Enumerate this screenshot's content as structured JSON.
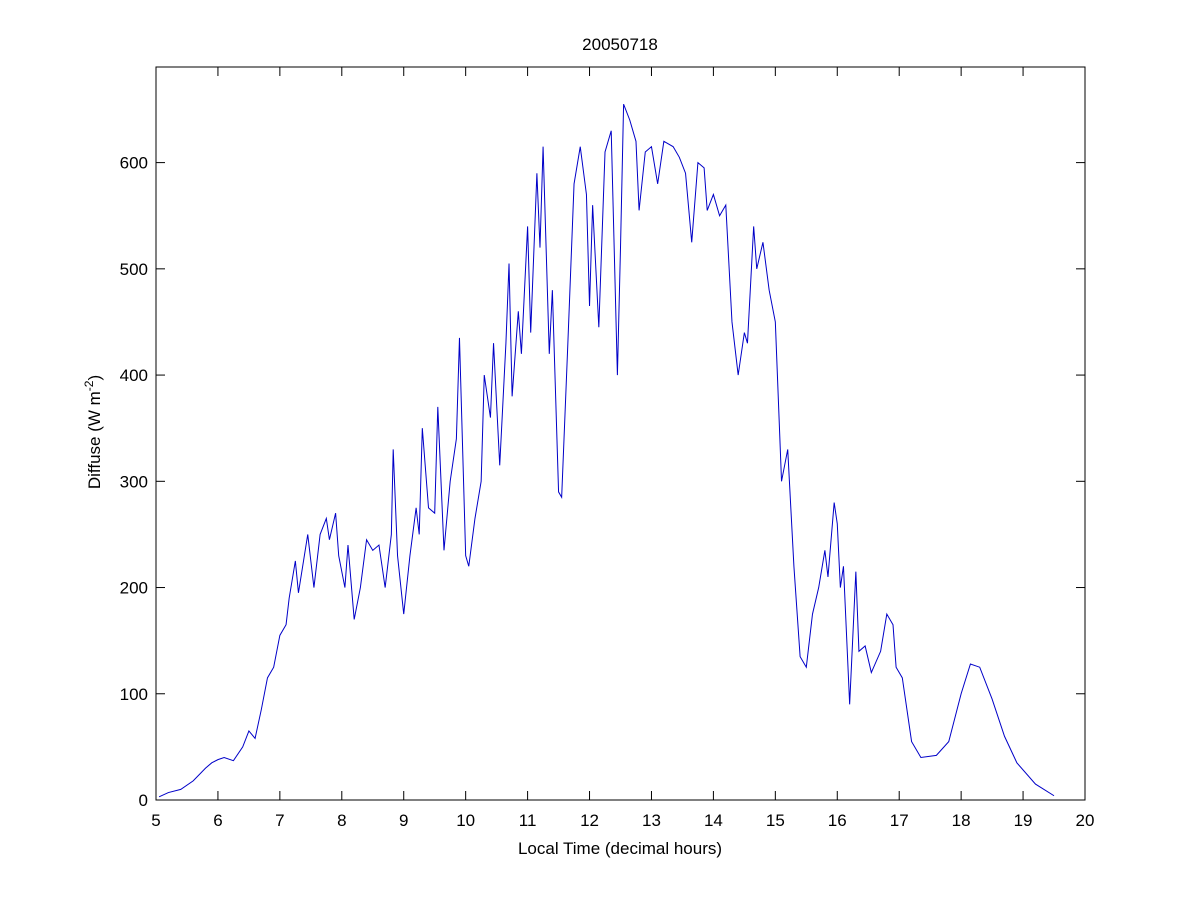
{
  "chart_data": {
    "type": "line",
    "title": "20050718",
    "x_label": "Local Time (decimal hours)",
    "y_label": "Diffuse (W m",
    "y_label_superscript": "-2",
    "y_label_suffix": ")",
    "xlim": [
      5,
      20
    ],
    "ylim": [
      0,
      690
    ],
    "xticks": [
      5,
      6,
      7,
      8,
      9,
      10,
      11,
      12,
      13,
      14,
      15,
      16,
      17,
      18,
      19,
      20
    ],
    "yticks": [
      0,
      100,
      200,
      300,
      400,
      500,
      600
    ],
    "grid": false,
    "series": [
      {
        "color": "#0000c8",
        "x": [
          5.05,
          5.2,
          5.4,
          5.6,
          5.8,
          5.9,
          6.0,
          6.1,
          6.25,
          6.4,
          6.5,
          6.6,
          6.7,
          6.8,
          6.9,
          7.0,
          7.1,
          7.15,
          7.25,
          7.3,
          7.45,
          7.55,
          7.65,
          7.75,
          7.8,
          7.9,
          7.95,
          8.05,
          8.1,
          8.2,
          8.3,
          8.4,
          8.5,
          8.6,
          8.7,
          8.8,
          8.83,
          8.9,
          9.0,
          9.1,
          9.2,
          9.25,
          9.3,
          9.4,
          9.5,
          9.55,
          9.65,
          9.75,
          9.85,
          9.9,
          10.0,
          10.05,
          10.15,
          10.25,
          10.3,
          10.4,
          10.45,
          10.55,
          10.65,
          10.7,
          10.75,
          10.85,
          10.9,
          11.0,
          11.05,
          11.15,
          11.2,
          11.25,
          11.35,
          11.4,
          11.5,
          11.55,
          11.65,
          11.75,
          11.85,
          11.95,
          12.0,
          12.05,
          12.15,
          12.25,
          12.35,
          12.45,
          12.5,
          12.55,
          12.65,
          12.75,
          12.8,
          12.9,
          13.0,
          13.1,
          13.2,
          13.35,
          13.45,
          13.55,
          13.65,
          13.75,
          13.85,
          13.9,
          14.0,
          14.1,
          14.2,
          14.3,
          14.4,
          14.5,
          14.55,
          14.65,
          14.7,
          14.8,
          14.9,
          15.0,
          15.1,
          15.2,
          15.3,
          15.4,
          15.5,
          15.6,
          15.7,
          15.8,
          15.85,
          15.95,
          16.0,
          16.05,
          16.1,
          16.2,
          16.3,
          16.35,
          16.45,
          16.55,
          16.7,
          16.8,
          16.9,
          16.95,
          17.05,
          17.2,
          17.35,
          17.6,
          17.8,
          18.0,
          18.15,
          18.3,
          18.5,
          18.7,
          18.9,
          19.2,
          19.5
        ],
        "values": [
          3,
          7,
          10,
          18,
          30,
          35,
          38,
          40,
          37,
          50,
          65,
          58,
          85,
          115,
          125,
          155,
          165,
          190,
          225,
          195,
          250,
          200,
          250,
          265,
          245,
          270,
          230,
          200,
          240,
          170,
          200,
          245,
          235,
          240,
          200,
          250,
          330,
          230,
          175,
          230,
          275,
          250,
          350,
          275,
          270,
          370,
          235,
          300,
          340,
          435,
          230,
          220,
          265,
          300,
          400,
          360,
          430,
          315,
          430,
          505,
          380,
          460,
          420,
          540,
          440,
          590,
          520,
          615,
          420,
          480,
          290,
          285,
          430,
          580,
          615,
          570,
          465,
          560,
          445,
          610,
          630,
          400,
          520,
          655,
          640,
          620,
          555,
          610,
          615,
          580,
          620,
          615,
          605,
          590,
          525,
          600,
          595,
          555,
          570,
          550,
          560,
          450,
          400,
          440,
          430,
          540,
          500,
          525,
          480,
          450,
          300,
          330,
          220,
          135,
          125,
          175,
          200,
          235,
          210,
          280,
          260,
          200,
          220,
          90,
          215,
          140,
          145,
          120,
          140,
          175,
          165,
          125,
          115,
          55,
          40,
          42,
          55,
          100,
          128,
          125,
          95,
          60,
          35,
          15,
          4
        ]
      }
    ]
  }
}
